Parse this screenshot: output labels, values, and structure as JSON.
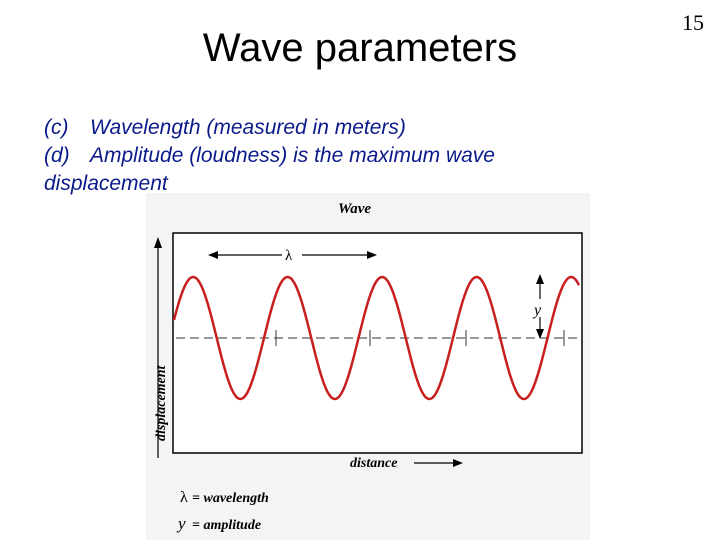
{
  "slide": {
    "page_number": "15",
    "title": "Wave parameters",
    "bullets": [
      {
        "marker": "(c)",
        "lines": [
          "Wavelength (measured in meters)"
        ]
      },
      {
        "marker": "(d)",
        "lines": [
          "Amplitude (loudness) is the maximum wave",
          "displacement"
        ]
      }
    ]
  },
  "figure": {
    "title": "Wave",
    "y_axis_label": "displacement",
    "x_axis_label": "distance",
    "wavelength_symbol": "λ",
    "amplitude_symbol": "y",
    "legend": [
      {
        "symbol": "λ",
        "text": "= wavelength"
      },
      {
        "symbol": "y",
        "text": "= amplitude"
      }
    ],
    "colors": {
      "wave": "#c81e1e",
      "axes": "#000000",
      "background": "#f4f4f4"
    },
    "wave_cycles": 4
  }
}
